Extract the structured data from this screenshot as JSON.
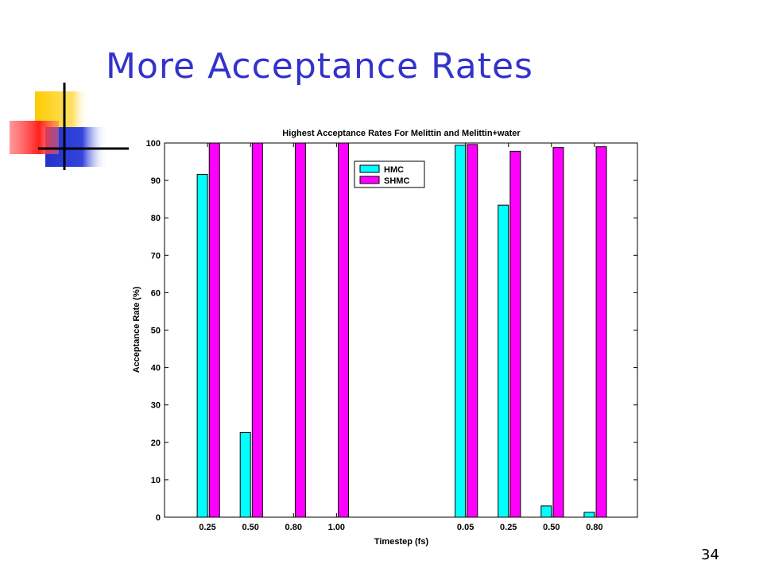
{
  "slide": {
    "title": "More Acceptance Rates",
    "page_number": "34"
  },
  "colors": {
    "title": "#3333cc",
    "hmc": "#00ffff",
    "shmc": "#ff00ff",
    "deco_yellow": "#ffcc00",
    "deco_red": "#ff3333",
    "deco_blue": "#3333cc"
  },
  "chart_data": {
    "type": "bar",
    "title": "Highest Acceptance Rates For Melittin and Melittin+water",
    "xlabel": "Timestep (fs)",
    "ylabel": "Acceptance Rate (%)",
    "ylim": [
      0,
      100
    ],
    "yticks": [
      0,
      10,
      20,
      30,
      40,
      50,
      60,
      70,
      80,
      90,
      100
    ],
    "categories": [
      "0.25",
      "0.50",
      "0.80",
      "1.00",
      "0.05",
      "0.25",
      "0.50",
      "0.80"
    ],
    "category_slots": [
      1,
      2,
      3,
      4,
      7,
      8,
      9,
      10
    ],
    "xlim": [
      0,
      11
    ],
    "series": [
      {
        "name": "HMC",
        "color": "#00ffff",
        "values": [
          91.6,
          22.6,
          0,
          0,
          99.4,
          83.4,
          3.0,
          1.3
        ]
      },
      {
        "name": "SHMC",
        "color": "#ff00ff",
        "values": [
          100,
          100,
          100,
          100,
          99.6,
          97.8,
          98.8,
          99.0
        ]
      }
    ],
    "legend_position": "top-center",
    "grid": false
  }
}
